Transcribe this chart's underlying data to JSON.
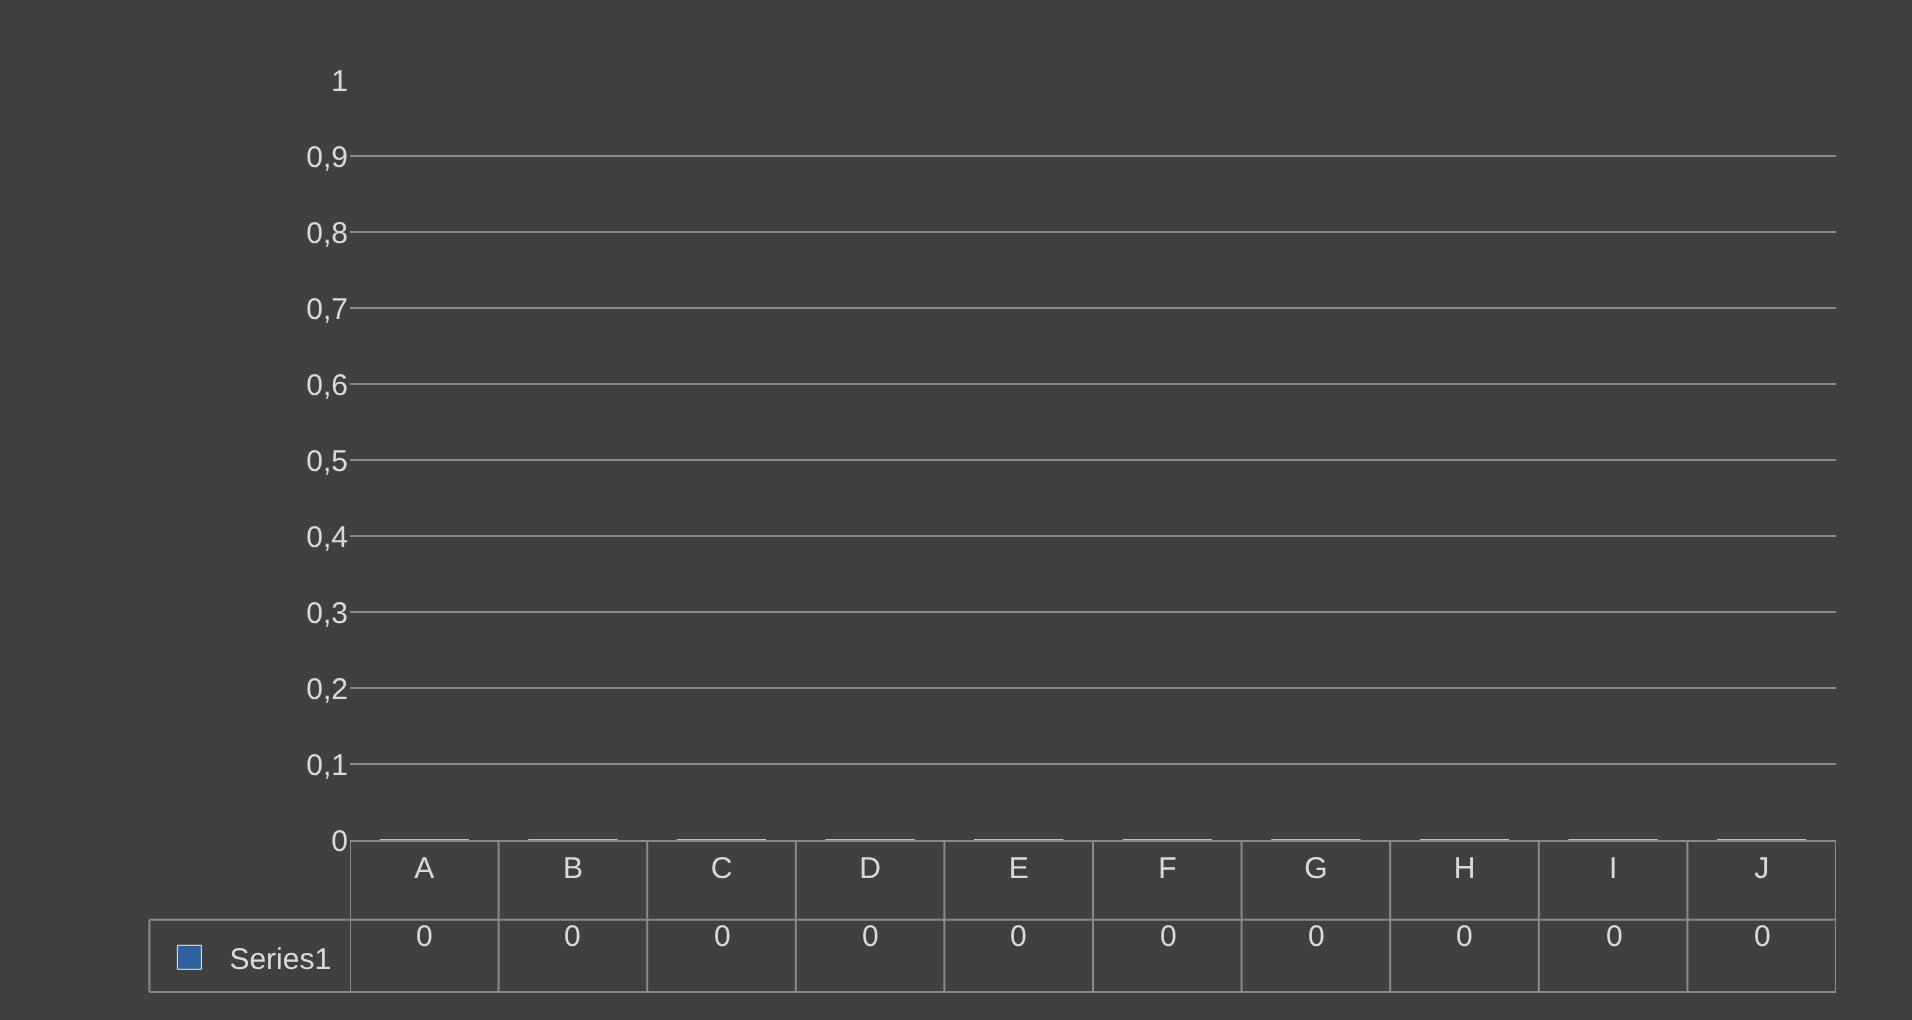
{
  "chart_data": {
    "type": "bar",
    "categories": [
      "A",
      "B",
      "C",
      "D",
      "E",
      "F",
      "G",
      "H",
      "I",
      "J"
    ],
    "series": [
      {
        "name": "Series1",
        "color": "#2e5f9e",
        "values": [
          0,
          0,
          0,
          0,
          0,
          0,
          0,
          0,
          0,
          0
        ]
      }
    ],
    "ylim": [
      0,
      1
    ],
    "yticks": [
      0,
      {
        "value": 0.1,
        "label": "0,1"
      },
      {
        "value": 0.2,
        "label": "0,2"
      },
      {
        "value": 0.3,
        "label": "0,3"
      },
      {
        "value": 0.4,
        "label": "0,4"
      },
      {
        "value": 0.5,
        "label": "0,5"
      },
      {
        "value": 0.6,
        "label": "0,6"
      },
      {
        "value": 0.7,
        "label": "0,7"
      },
      {
        "value": 0.8,
        "label": "0,8"
      },
      {
        "value": 0.9,
        "label": "0,9"
      },
      1
    ],
    "grid": "y",
    "legend": "bottom",
    "data_labels": true
  }
}
